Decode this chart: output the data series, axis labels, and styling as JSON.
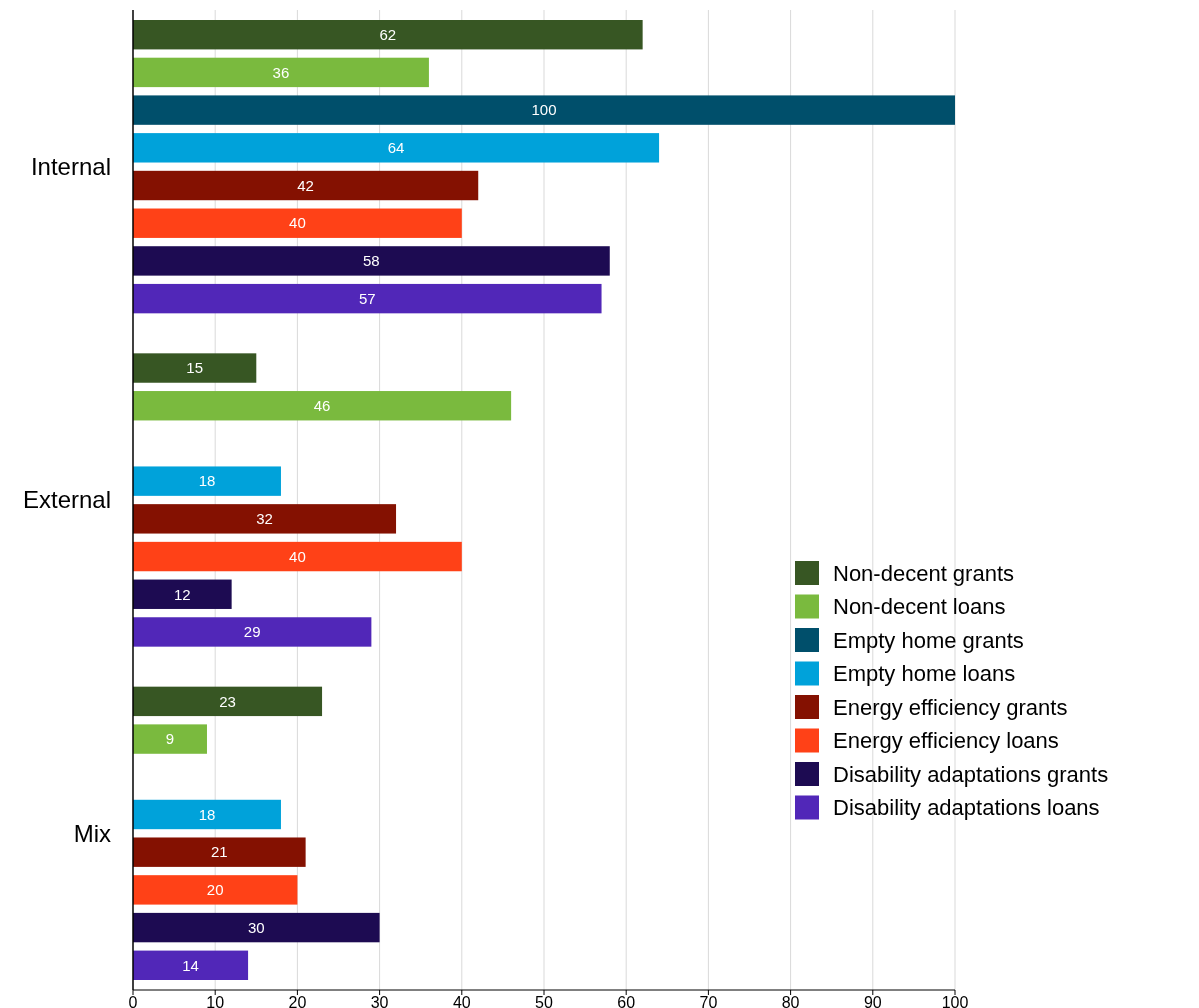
{
  "chart_data": {
    "type": "bar",
    "orientation": "horizontal",
    "categories": [
      "Internal",
      "External",
      "Mix"
    ],
    "series": [
      {
        "name": "Non-decent grants",
        "color": "#375623",
        "values": [
          62,
          15,
          23
        ]
      },
      {
        "name": "Non-decent loans",
        "color": "#7aba3e",
        "values": [
          36,
          46,
          9
        ]
      },
      {
        "name": "Empty home grants",
        "color": "#004f6b",
        "values": [
          100,
          null,
          null
        ]
      },
      {
        "name": "Empty home loans",
        "color": "#00a2da",
        "values": [
          64,
          18,
          18
        ]
      },
      {
        "name": "Energy efficiency grants",
        "color": "#841101",
        "values": [
          42,
          32,
          21
        ]
      },
      {
        "name": "Energy efficiency loans",
        "color": "#ff4117",
        "values": [
          40,
          40,
          20
        ]
      },
      {
        "name": "Disability adaptations grants",
        "color": "#1d0b52",
        "values": [
          58,
          12,
          30
        ]
      },
      {
        "name": "Disability adaptations loans",
        "color": "#5127b8",
        "values": [
          57,
          29,
          14
        ]
      }
    ],
    "xlim": [
      0,
      100
    ],
    "xticks": [
      0,
      10,
      20,
      30,
      40,
      50,
      60,
      70,
      80,
      90,
      100
    ],
    "grid": "x",
    "legend": "bottom right",
    "data_labels": true
  }
}
